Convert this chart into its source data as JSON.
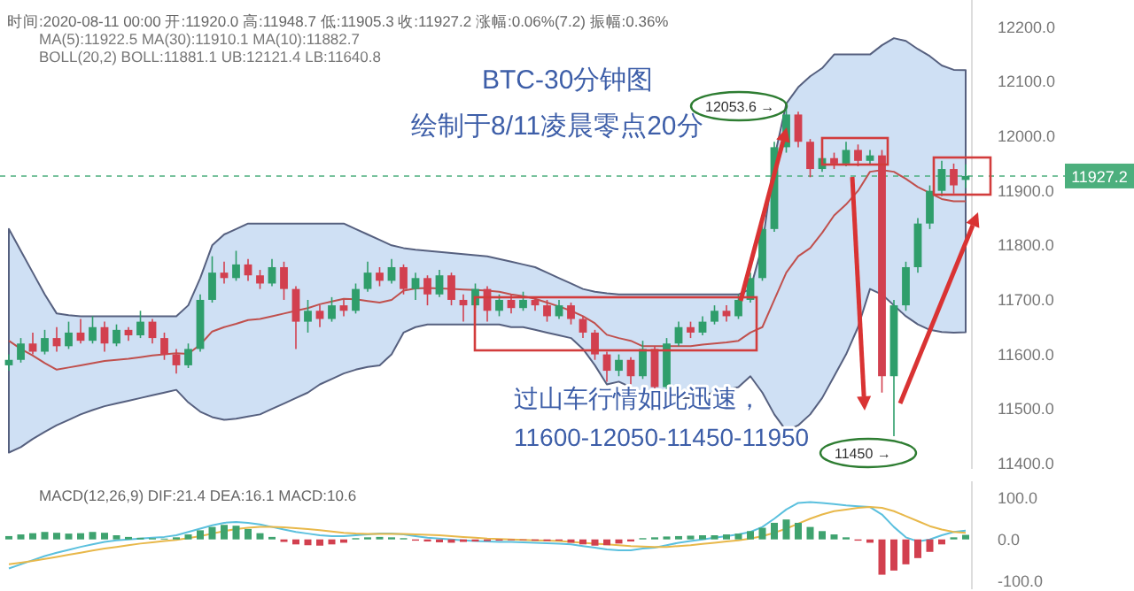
{
  "chart_data": [
    {
      "type": "candlestick",
      "title": "BTC-30分钟图",
      "subtitle": "绘制于8/11凌晨零点20分",
      "tick_labels": "y",
      "categories": [
        null,
        null,
        null,
        null,
        null,
        null,
        null,
        null,
        null,
        null,
        null,
        null,
        null,
        null,
        null,
        null,
        null,
        null,
        null,
        null,
        null,
        null,
        null,
        null,
        null,
        null,
        null,
        null,
        null,
        null,
        null,
        null,
        null,
        null,
        null,
        null,
        null,
        null,
        null,
        null,
        null,
        null,
        null,
        null,
        null,
        null,
        null,
        null,
        null,
        null,
        null,
        null,
        null,
        null,
        null,
        null,
        null,
        null,
        null,
        null,
        null,
        null,
        null,
        null,
        null,
        null,
        null,
        null,
        null,
        null,
        null,
        null,
        null,
        null,
        null,
        null,
        null,
        null,
        null,
        null,
        null
      ],
      "ohlc": [
        [
          11580,
          11600,
          11570,
          11590
        ],
        [
          11590,
          11630,
          11585,
          11620
        ],
        [
          11620,
          11640,
          11600,
          11605
        ],
        [
          11605,
          11645,
          11600,
          11630
        ],
        [
          11630,
          11650,
          11605,
          11615
        ],
        [
          11615,
          11660,
          11610,
          11640
        ],
        [
          11640,
          11665,
          11620,
          11625
        ],
        [
          11625,
          11670,
          11620,
          11650
        ],
        [
          11650,
          11660,
          11605,
          11620
        ],
        [
          11620,
          11655,
          11615,
          11645
        ],
        [
          11645,
          11650,
          11625,
          11635
        ],
        [
          11635,
          11680,
          11630,
          11660
        ],
        [
          11660,
          11665,
          11620,
          11630
        ],
        [
          11630,
          11640,
          11590,
          11600
        ],
        [
          11600,
          11610,
          11565,
          11580
        ],
        [
          11580,
          11620,
          11575,
          11610
        ],
        [
          11610,
          11710,
          11605,
          11700
        ],
        [
          11700,
          11780,
          11695,
          11750
        ],
        [
          11750,
          11770,
          11730,
          11740
        ],
        [
          11740,
          11790,
          11735,
          11765
        ],
        [
          11765,
          11775,
          11735,
          11745
        ],
        [
          11745,
          11755,
          11720,
          11730
        ],
        [
          11730,
          11775,
          11725,
          11760
        ],
        [
          11760,
          11770,
          11700,
          11720
        ],
        [
          11720,
          11725,
          11610,
          11660
        ],
        [
          11660,
          11700,
          11640,
          11680
        ],
        [
          11680,
          11690,
          11650,
          11665
        ],
        [
          11665,
          11705,
          11660,
          11690
        ],
        [
          11690,
          11700,
          11670,
          11680
        ],
        [
          11680,
          11730,
          11675,
          11720
        ],
        [
          11720,
          11770,
          11715,
          11750
        ],
        [
          11750,
          11760,
          11725,
          11735
        ],
        [
          11735,
          11775,
          11730,
          11760
        ],
        [
          11760,
          11765,
          11710,
          11720
        ],
        [
          11720,
          11750,
          11700,
          11740
        ],
        [
          11740,
          11745,
          11690,
          11710
        ],
        [
          11710,
          11755,
          11705,
          11745
        ],
        [
          11745,
          11750,
          11690,
          11700
        ],
        [
          11700,
          11710,
          11660,
          11690
        ],
        [
          11690,
          11730,
          11685,
          11720
        ],
        [
          11720,
          11725,
          11660,
          11680
        ],
        [
          11680,
          11710,
          11670,
          11700
        ],
        [
          11700,
          11710,
          11675,
          11685
        ],
        [
          11685,
          11715,
          11680,
          11700
        ],
        [
          11700,
          11705,
          11680,
          11690
        ],
        [
          11690,
          11700,
          11660,
          11670
        ],
        [
          11670,
          11700,
          11665,
          11690
        ],
        [
          11690,
          11695,
          11655,
          11665
        ],
        [
          11665,
          11670,
          11630,
          11640
        ],
        [
          11640,
          11645,
          11590,
          11600
        ],
        [
          11600,
          11605,
          11550,
          11570
        ],
        [
          11570,
          11600,
          11560,
          11590
        ],
        [
          11590,
          11595,
          11545,
          11560
        ],
        [
          11560,
          11625,
          11555,
          11610
        ],
        [
          11610,
          11615,
          11528,
          11540
        ],
        [
          11540,
          11630,
          11535,
          11620
        ],
        [
          11620,
          11660,
          11615,
          11650
        ],
        [
          11650,
          11660,
          11630,
          11640
        ],
        [
          11640,
          11670,
          11635,
          11660
        ],
        [
          11660,
          11690,
          11655,
          11680
        ],
        [
          11680,
          11690,
          11660,
          11670
        ],
        [
          11670,
          11710,
          11665,
          11700
        ],
        [
          11700,
          11750,
          11695,
          11740
        ],
        [
          11740,
          11840,
          11735,
          11830
        ],
        [
          11830,
          11990,
          11825,
          11980
        ],
        [
          11980,
          12053.6,
          11970,
          12040
        ],
        [
          12040,
          12045,
          11980,
          11990
        ],
        [
          11990,
          11995,
          11925,
          11940
        ],
        [
          11940,
          11970,
          11935,
          11960
        ],
        [
          11960,
          11970,
          11940,
          11950
        ],
        [
          11950,
          11990,
          11945,
          11975
        ],
        [
          11975,
          11985,
          11945,
          11955
        ],
        [
          11955,
          11975,
          11950,
          11965
        ],
        [
          11965,
          11975,
          11530,
          11560
        ],
        [
          11560,
          11700,
          11450,
          11690
        ],
        [
          11690,
          11770,
          11680,
          11760
        ],
        [
          11760,
          11850,
          11750,
          11840
        ],
        [
          11840,
          11910,
          11830,
          11900
        ],
        [
          11900,
          11955,
          11890,
          11940
        ],
        [
          11940,
          11950,
          11895,
          11910
        ],
        [
          11920,
          11948.7,
          11905.3,
          11927.2
        ]
      ],
      "series": [
        {
          "type": "line",
          "color": "#c0504d",
          "values": [
            11625,
            11610,
            11598,
            11584,
            11572,
            11576,
            11580,
            11584,
            11588,
            11590,
            11592,
            11595,
            11598,
            11600,
            11602,
            11601,
            11618,
            11642,
            11650,
            11656,
            11663,
            11665,
            11670,
            11675,
            11680,
            11685,
            11692,
            11697,
            11702,
            11701,
            11698,
            11695,
            11700,
            11717,
            11721,
            11722,
            11721,
            11720,
            11719,
            11718,
            11717,
            11715,
            11710,
            11707,
            11702,
            11695,
            11688,
            11680,
            11670,
            11657,
            11636,
            11630,
            11625,
            11615,
            11615,
            11615,
            11615,
            11615,
            11618,
            11620,
            11622,
            11625,
            11640,
            11650,
            11700,
            11750,
            11780,
            11795,
            11823,
            11855,
            11875,
            11900,
            11935,
            11938,
            11935,
            11922,
            11907,
            11896,
            11885,
            11881,
            11881
          ],
          "lower": [
            11420,
            11430,
            11445,
            11458,
            11470,
            11480,
            11490,
            11498,
            11505,
            11510,
            11515,
            11520,
            11525,
            11530,
            11535,
            11512,
            11495,
            11485,
            11480,
            11482,
            11486,
            11490,
            11500,
            11510,
            11520,
            11530,
            11545,
            11555,
            11565,
            11572,
            11577,
            11580,
            11600,
            11640,
            11650,
            11655,
            11655,
            11655,
            11655,
            11655,
            11655,
            11655,
            11650,
            11650,
            11645,
            11640,
            11635,
            11630,
            11610,
            11580,
            11545,
            11550,
            11540,
            11520,
            11520,
            11520,
            11520,
            11520,
            11525,
            11530,
            11535,
            11540,
            11560,
            11530,
            11490,
            11460,
            11470,
            11490,
            11520,
            11560,
            11600,
            11650,
            11720,
            11710,
            11690,
            11670,
            11655,
            11645,
            11641,
            11640,
            11640.8
          ],
          "upper": [
            11830,
            11790,
            11750,
            11710,
            11675,
            11672,
            11670,
            11670,
            11670,
            11670,
            11670,
            11670,
            11670,
            11670,
            11670,
            11690,
            11740,
            11800,
            11820,
            11830,
            11840,
            11840,
            11840,
            11840,
            11840,
            11840,
            11840,
            11840,
            11840,
            11830,
            11820,
            11810,
            11800,
            11795,
            11792,
            11790,
            11788,
            11786,
            11784,
            11782,
            11780,
            11775,
            11770,
            11765,
            11760,
            11750,
            11740,
            11730,
            11720,
            11715,
            11712,
            11710,
            11710,
            11710,
            11710,
            11710,
            11710,
            11710,
            11710,
            11710,
            11710,
            11710,
            11720,
            11800,
            11960,
            12060,
            12090,
            12110,
            12125,
            12150,
            12150,
            12150,
            12150,
            12167,
            12180,
            12175,
            12160,
            12147,
            12130,
            12122,
            12121.4
          ]
        }
      ],
      "ylim": [
        11390,
        12250
      ],
      "yticks": [
        {
          "value": 11400,
          "label": "11400.0"
        },
        {
          "value": 11500,
          "label": "11500.0"
        },
        {
          "value": 11600,
          "label": "11600.0"
        },
        {
          "value": 11700,
          "label": "11700.0"
        },
        {
          "value": 11800,
          "label": "11800.0"
        },
        {
          "value": 11900,
          "label": "11900.0"
        },
        {
          "value": 12000,
          "label": "12000.0"
        },
        {
          "value": 12100,
          "label": "12100.0"
        },
        {
          "value": 12200,
          "label": "12200.0"
        }
      ],
      "ref_lines": [
        {
          "axis": "y",
          "value": 11927.2,
          "label": "11927.2",
          "color": "#4caf7d",
          "line_style": "dashed"
        }
      ],
      "annotations": [
        "时间:2020-08-11 00:00 开:11920.0 高:11948.7 低:11905.3 收:11927.2 涨幅:0.06%(7.2) 振幅:0.36%",
        "MA(5):11922.5 MA(30):11910.1 MA(10):11882.7",
        "BOLL(20,2) BOLL:11881.1 UB:12121.4 LB:11640.8",
        "过山车行情如此迅速，",
        "11600-12050-11450-11950",
        "12053.6 →",
        "11450 →"
      ]
    },
    {
      "type": "bar",
      "tick_labels": "y",
      "categories": [
        null,
        null,
        null,
        null,
        null,
        null,
        null,
        null,
        null,
        null,
        null,
        null,
        null,
        null,
        null,
        null,
        null,
        null,
        null,
        null,
        null,
        null,
        null,
        null,
        null,
        null,
        null,
        null,
        null,
        null,
        null,
        null,
        null,
        null,
        null,
        null,
        null,
        null,
        null,
        null,
        null,
        null,
        null,
        null,
        null,
        null,
        null,
        null,
        null,
        null,
        null,
        null,
        null,
        null,
        null,
        null,
        null,
        null,
        null,
        null,
        null,
        null,
        null,
        null,
        null,
        null,
        null,
        null,
        null,
        null,
        null,
        null,
        null,
        null,
        null,
        null,
        null,
        null,
        null,
        null,
        null
      ],
      "values": [
        8,
        12,
        15,
        18,
        16,
        14,
        15,
        18,
        16,
        10,
        6,
        4,
        3,
        2,
        5,
        12,
        22,
        30,
        35,
        33,
        25,
        15,
        6,
        -6,
        -12,
        -14,
        -15,
        -12,
        -8,
        3,
        5,
        6,
        5,
        3,
        -3,
        -5,
        -7,
        -8,
        -6,
        -5,
        -4,
        -3,
        -2,
        -2,
        -3,
        -4,
        -3,
        -8,
        -12,
        -15,
        -14,
        -10,
        -5,
        3,
        5,
        7,
        8,
        9,
        10,
        10,
        12,
        14,
        20,
        28,
        40,
        48,
        40,
        30,
        20,
        12,
        5,
        -3,
        -8,
        -85,
        -75,
        -60,
        -45,
        -30,
        -12,
        5,
        11
      ],
      "colors": [
        "#3fa36f",
        "#3fa36f",
        "#3fa36f",
        "#3fa36f",
        "#3fa36f",
        "#3fa36f",
        "#3fa36f",
        "#3fa36f",
        "#3fa36f",
        "#3fa36f",
        "#3fa36f",
        "#3fa36f",
        "#3fa36f",
        "#3fa36f",
        "#3fa36f",
        "#3fa36f",
        "#3fa36f",
        "#3fa36f",
        "#3fa36f",
        "#3fa36f",
        "#3fa36f",
        "#3fa36f",
        "#3fa36f",
        "#d2404f",
        "#d2404f",
        "#d2404f",
        "#d2404f",
        "#d2404f",
        "#d2404f",
        "#3fa36f",
        "#3fa36f",
        "#3fa36f",
        "#3fa36f",
        "#3fa36f",
        "#d2404f",
        "#d2404f",
        "#d2404f",
        "#d2404f",
        "#d2404f",
        "#d2404f",
        "#d2404f",
        "#d2404f",
        "#d2404f",
        "#d2404f",
        "#d2404f",
        "#d2404f",
        "#d2404f",
        "#d2404f",
        "#d2404f",
        "#d2404f",
        "#d2404f",
        "#d2404f",
        "#d2404f",
        "#3fa36f",
        "#3fa36f",
        "#3fa36f",
        "#3fa36f",
        "#3fa36f",
        "#3fa36f",
        "#3fa36f",
        "#3fa36f",
        "#3fa36f",
        "#3fa36f",
        "#3fa36f",
        "#3fa36f",
        "#3fa36f",
        "#3fa36f",
        "#3fa36f",
        "#3fa36f",
        "#3fa36f",
        "#3fa36f",
        "#d2404f",
        "#d2404f",
        "#d2404f",
        "#d2404f",
        "#d2404f",
        "#d2404f",
        "#d2404f",
        "#d2404f",
        "#3fa36f",
        "#3fa36f"
      ],
      "series": [
        {
          "type": "line",
          "color": "#5bc0de",
          "values": [
            -70,
            -60,
            -50,
            -40,
            -32,
            -25,
            -18,
            -12,
            -6,
            -2,
            0,
            2,
            4,
            6,
            10,
            18,
            26,
            34,
            40,
            42,
            40,
            36,
            30,
            24,
            18,
            14,
            10,
            8,
            8,
            10,
            12,
            14,
            14,
            12,
            8,
            4,
            2,
            0,
            -2,
            -4,
            -5,
            -6,
            -6,
            -7,
            -8,
            -9,
            -10,
            -12,
            -16,
            -20,
            -24,
            -26,
            -26,
            -22,
            -20,
            -14,
            -8,
            -4,
            0,
            4,
            8,
            12,
            18,
            30,
            50,
            72,
            88,
            90,
            88,
            85,
            82,
            80,
            78,
            60,
            30,
            5,
            -5,
            0,
            10,
            18,
            21
          ]
        },
        {
          "type": "line",
          "color": "#e8b84a",
          "values": [
            -60,
            -56,
            -52,
            -47,
            -42,
            -37,
            -32,
            -27,
            -22,
            -18,
            -14,
            -10,
            -7,
            -4,
            -1,
            3,
            8,
            14,
            20,
            25,
            28,
            30,
            30,
            29,
            27,
            25,
            22,
            19,
            16,
            14,
            13,
            13,
            13,
            13,
            12,
            11,
            10,
            8,
            6,
            4,
            2,
            1,
            0,
            -1,
            -2,
            -3,
            -4,
            -6,
            -8,
            -10,
            -12,
            -14,
            -16,
            -17,
            -18,
            -18,
            -16,
            -14,
            -11,
            -8,
            -5,
            -2,
            2,
            8,
            16,
            26,
            38,
            50,
            60,
            68,
            72,
            76,
            78,
            76,
            68,
            56,
            44,
            32,
            24,
            18,
            16
          ]
        }
      ],
      "ylim": [
        -120,
        140
      ],
      "yticks": [
        {
          "value": -100,
          "label": "-100.0"
        },
        {
          "value": 0,
          "label": "0.0"
        },
        {
          "value": 100,
          "label": "100.0"
        }
      ],
      "annotations": [
        "MACD(12,26,9) DIF:21.4 DEA:16.1 MACD:10.6"
      ]
    }
  ]
}
